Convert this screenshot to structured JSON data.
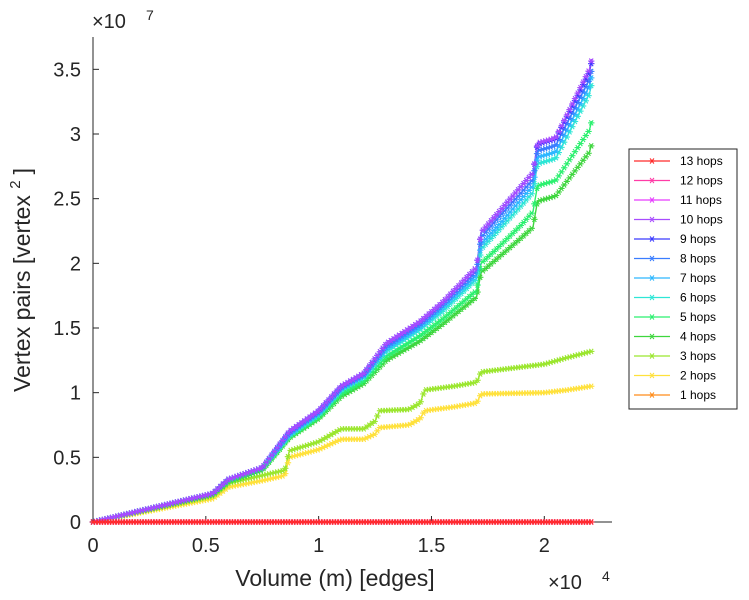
{
  "chart_data": {
    "type": "line",
    "xlabel": "Volume (m) [edges]",
    "ylabel": "Vertex pairs [vertex ",
    "ylabel_superscript": "2",
    "ylabel_close": "]",
    "x_multiplier": {
      "base": "×10",
      "exp": "4"
    },
    "y_multiplier": {
      "base": "×10",
      "exp": "7"
    },
    "xlim": [
      0,
      2.3
    ],
    "ylim": [
      0,
      3.75
    ],
    "xticks": [
      0,
      0.5,
      1,
      1.5,
      2
    ],
    "xtick_labels": [
      "0",
      "0.5",
      "1",
      "1.5",
      "2"
    ],
    "yticks": [
      0,
      0.5,
      1,
      1.5,
      2,
      2.5,
      3,
      3.5
    ],
    "ytick_labels": [
      "0",
      "0.5",
      "1",
      "1.5",
      "2",
      "2.5",
      "3",
      "3.5"
    ],
    "legend_position": "outside-right",
    "series": [
      {
        "name": "13 hops",
        "color": "#ff2b2b",
        "x": [
          0,
          2.21
        ],
        "y": [
          0,
          0
        ]
      },
      {
        "name": "12 hops",
        "color": "#ff3ca6",
        "x": [
          0,
          2.21
        ],
        "y": [
          0,
          0
        ]
      },
      {
        "name": "11 hops",
        "color": "#e63cff",
        "x": [
          0,
          2.21
        ],
        "y": [
          0,
          0
        ]
      },
      {
        "name": "10 hops",
        "color": "#a84cff",
        "x": [
          0,
          0.53,
          0.6,
          0.75,
          0.87,
          1.0,
          1.1,
          1.2,
          1.3,
          1.45,
          1.55,
          1.7,
          1.72,
          1.8,
          1.9,
          1.95,
          1.97,
          2.05,
          2.2,
          2.21
        ],
        "y": [
          0,
          0.22,
          0.33,
          0.42,
          0.7,
          0.86,
          1.05,
          1.15,
          1.38,
          1.55,
          1.7,
          1.97,
          2.24,
          2.4,
          2.6,
          2.7,
          2.93,
          2.97,
          3.5,
          3.58
        ]
      },
      {
        "name": "9 hops",
        "color": "#3b3bff",
        "x": [
          0,
          0.53,
          0.6,
          0.75,
          0.87,
          1.0,
          1.1,
          1.2,
          1.3,
          1.45,
          1.55,
          1.7,
          1.72,
          1.8,
          1.9,
          1.95,
          1.97,
          2.05,
          2.2,
          2.21
        ],
        "y": [
          0,
          0.22,
          0.33,
          0.42,
          0.7,
          0.86,
          1.05,
          1.15,
          1.38,
          1.55,
          1.7,
          1.97,
          2.24,
          2.4,
          2.6,
          2.7,
          2.92,
          2.96,
          3.48,
          3.56
        ]
      },
      {
        "name": "8 hops",
        "color": "#3a7dff",
        "x": [
          0,
          0.53,
          0.6,
          0.75,
          0.87,
          1.0,
          1.1,
          1.2,
          1.3,
          1.45,
          1.55,
          1.7,
          1.72,
          1.8,
          1.9,
          1.95,
          1.97,
          2.05,
          2.2,
          2.21
        ],
        "y": [
          0,
          0.22,
          0.33,
          0.42,
          0.69,
          0.85,
          1.04,
          1.14,
          1.36,
          1.53,
          1.68,
          1.94,
          2.2,
          2.36,
          2.55,
          2.65,
          2.87,
          2.91,
          3.42,
          3.5
        ]
      },
      {
        "name": "7 hops",
        "color": "#2db7ff",
        "x": [
          0,
          0.53,
          0.6,
          0.75,
          0.87,
          1.0,
          1.1,
          1.2,
          1.3,
          1.45,
          1.55,
          1.7,
          1.72,
          1.8,
          1.9,
          1.95,
          1.97,
          2.05,
          2.2,
          2.21
        ],
        "y": [
          0,
          0.22,
          0.33,
          0.42,
          0.68,
          0.84,
          1.03,
          1.13,
          1.34,
          1.51,
          1.66,
          1.91,
          2.15,
          2.3,
          2.5,
          2.6,
          2.82,
          2.86,
          3.37,
          3.45
        ]
      },
      {
        "name": "6 hops",
        "color": "#2ee6d6",
        "x": [
          0,
          0.53,
          0.6,
          0.75,
          0.87,
          1.0,
          1.1,
          1.2,
          1.3,
          1.45,
          1.55,
          1.7,
          1.72,
          1.8,
          1.9,
          1.95,
          1.97,
          2.05,
          2.2,
          2.21
        ],
        "y": [
          0,
          0.22,
          0.33,
          0.42,
          0.67,
          0.83,
          1.02,
          1.12,
          1.32,
          1.49,
          1.63,
          1.88,
          2.11,
          2.26,
          2.45,
          2.55,
          2.77,
          2.81,
          3.31,
          3.39
        ]
      },
      {
        "name": "5 hops",
        "color": "#2bf06f",
        "x": [
          0,
          0.53,
          0.6,
          0.75,
          0.87,
          1.0,
          1.1,
          1.2,
          1.3,
          1.45,
          1.55,
          1.7,
          1.72,
          1.8,
          1.9,
          1.95,
          1.97,
          2.05,
          2.2,
          2.21
        ],
        "y": [
          0,
          0.22,
          0.32,
          0.41,
          0.66,
          0.81,
          0.99,
          1.09,
          1.28,
          1.44,
          1.57,
          1.79,
          2.0,
          2.13,
          2.3,
          2.4,
          2.6,
          2.64,
          3.03,
          3.1
        ]
      },
      {
        "name": "4 hops",
        "color": "#3ed63e",
        "x": [
          0,
          0.53,
          0.6,
          0.75,
          0.87,
          1.0,
          1.1,
          1.2,
          1.3,
          1.45,
          1.55,
          1.7,
          1.72,
          1.8,
          1.9,
          1.95,
          1.97,
          2.05,
          2.2,
          2.21
        ],
        "y": [
          0,
          0.21,
          0.31,
          0.4,
          0.65,
          0.8,
          0.97,
          1.07,
          1.25,
          1.4,
          1.53,
          1.74,
          1.93,
          2.05,
          2.2,
          2.28,
          2.48,
          2.52,
          2.86,
          2.92
        ]
      },
      {
        "name": "3 hops",
        "color": "#9be62e",
        "x": [
          0,
          0.53,
          0.6,
          0.75,
          0.85,
          0.87,
          1.0,
          1.1,
          1.2,
          1.25,
          1.27,
          1.4,
          1.45,
          1.47,
          1.6,
          1.7,
          1.72,
          2.0,
          2.1,
          2.21
        ],
        "y": [
          0,
          0.2,
          0.3,
          0.36,
          0.4,
          0.55,
          0.62,
          0.72,
          0.72,
          0.78,
          0.86,
          0.87,
          0.92,
          1.02,
          1.05,
          1.08,
          1.16,
          1.22,
          1.27,
          1.32
        ]
      },
      {
        "name": "2 hops",
        "color": "#ffe13c",
        "x": [
          0,
          0.53,
          0.6,
          0.75,
          0.85,
          0.87,
          1.0,
          1.1,
          1.2,
          1.25,
          1.27,
          1.4,
          1.45,
          1.47,
          1.6,
          1.7,
          1.72,
          2.0,
          2.1,
          2.21
        ],
        "y": [
          0,
          0.18,
          0.27,
          0.32,
          0.36,
          0.5,
          0.56,
          0.64,
          0.64,
          0.68,
          0.73,
          0.75,
          0.8,
          0.86,
          0.89,
          0.92,
          0.99,
          1.0,
          1.02,
          1.05
        ]
      },
      {
        "name": "1 hops",
        "color": "#ff8c1a",
        "x": [
          0,
          2.21
        ],
        "y": [
          0,
          0
        ]
      }
    ]
  }
}
